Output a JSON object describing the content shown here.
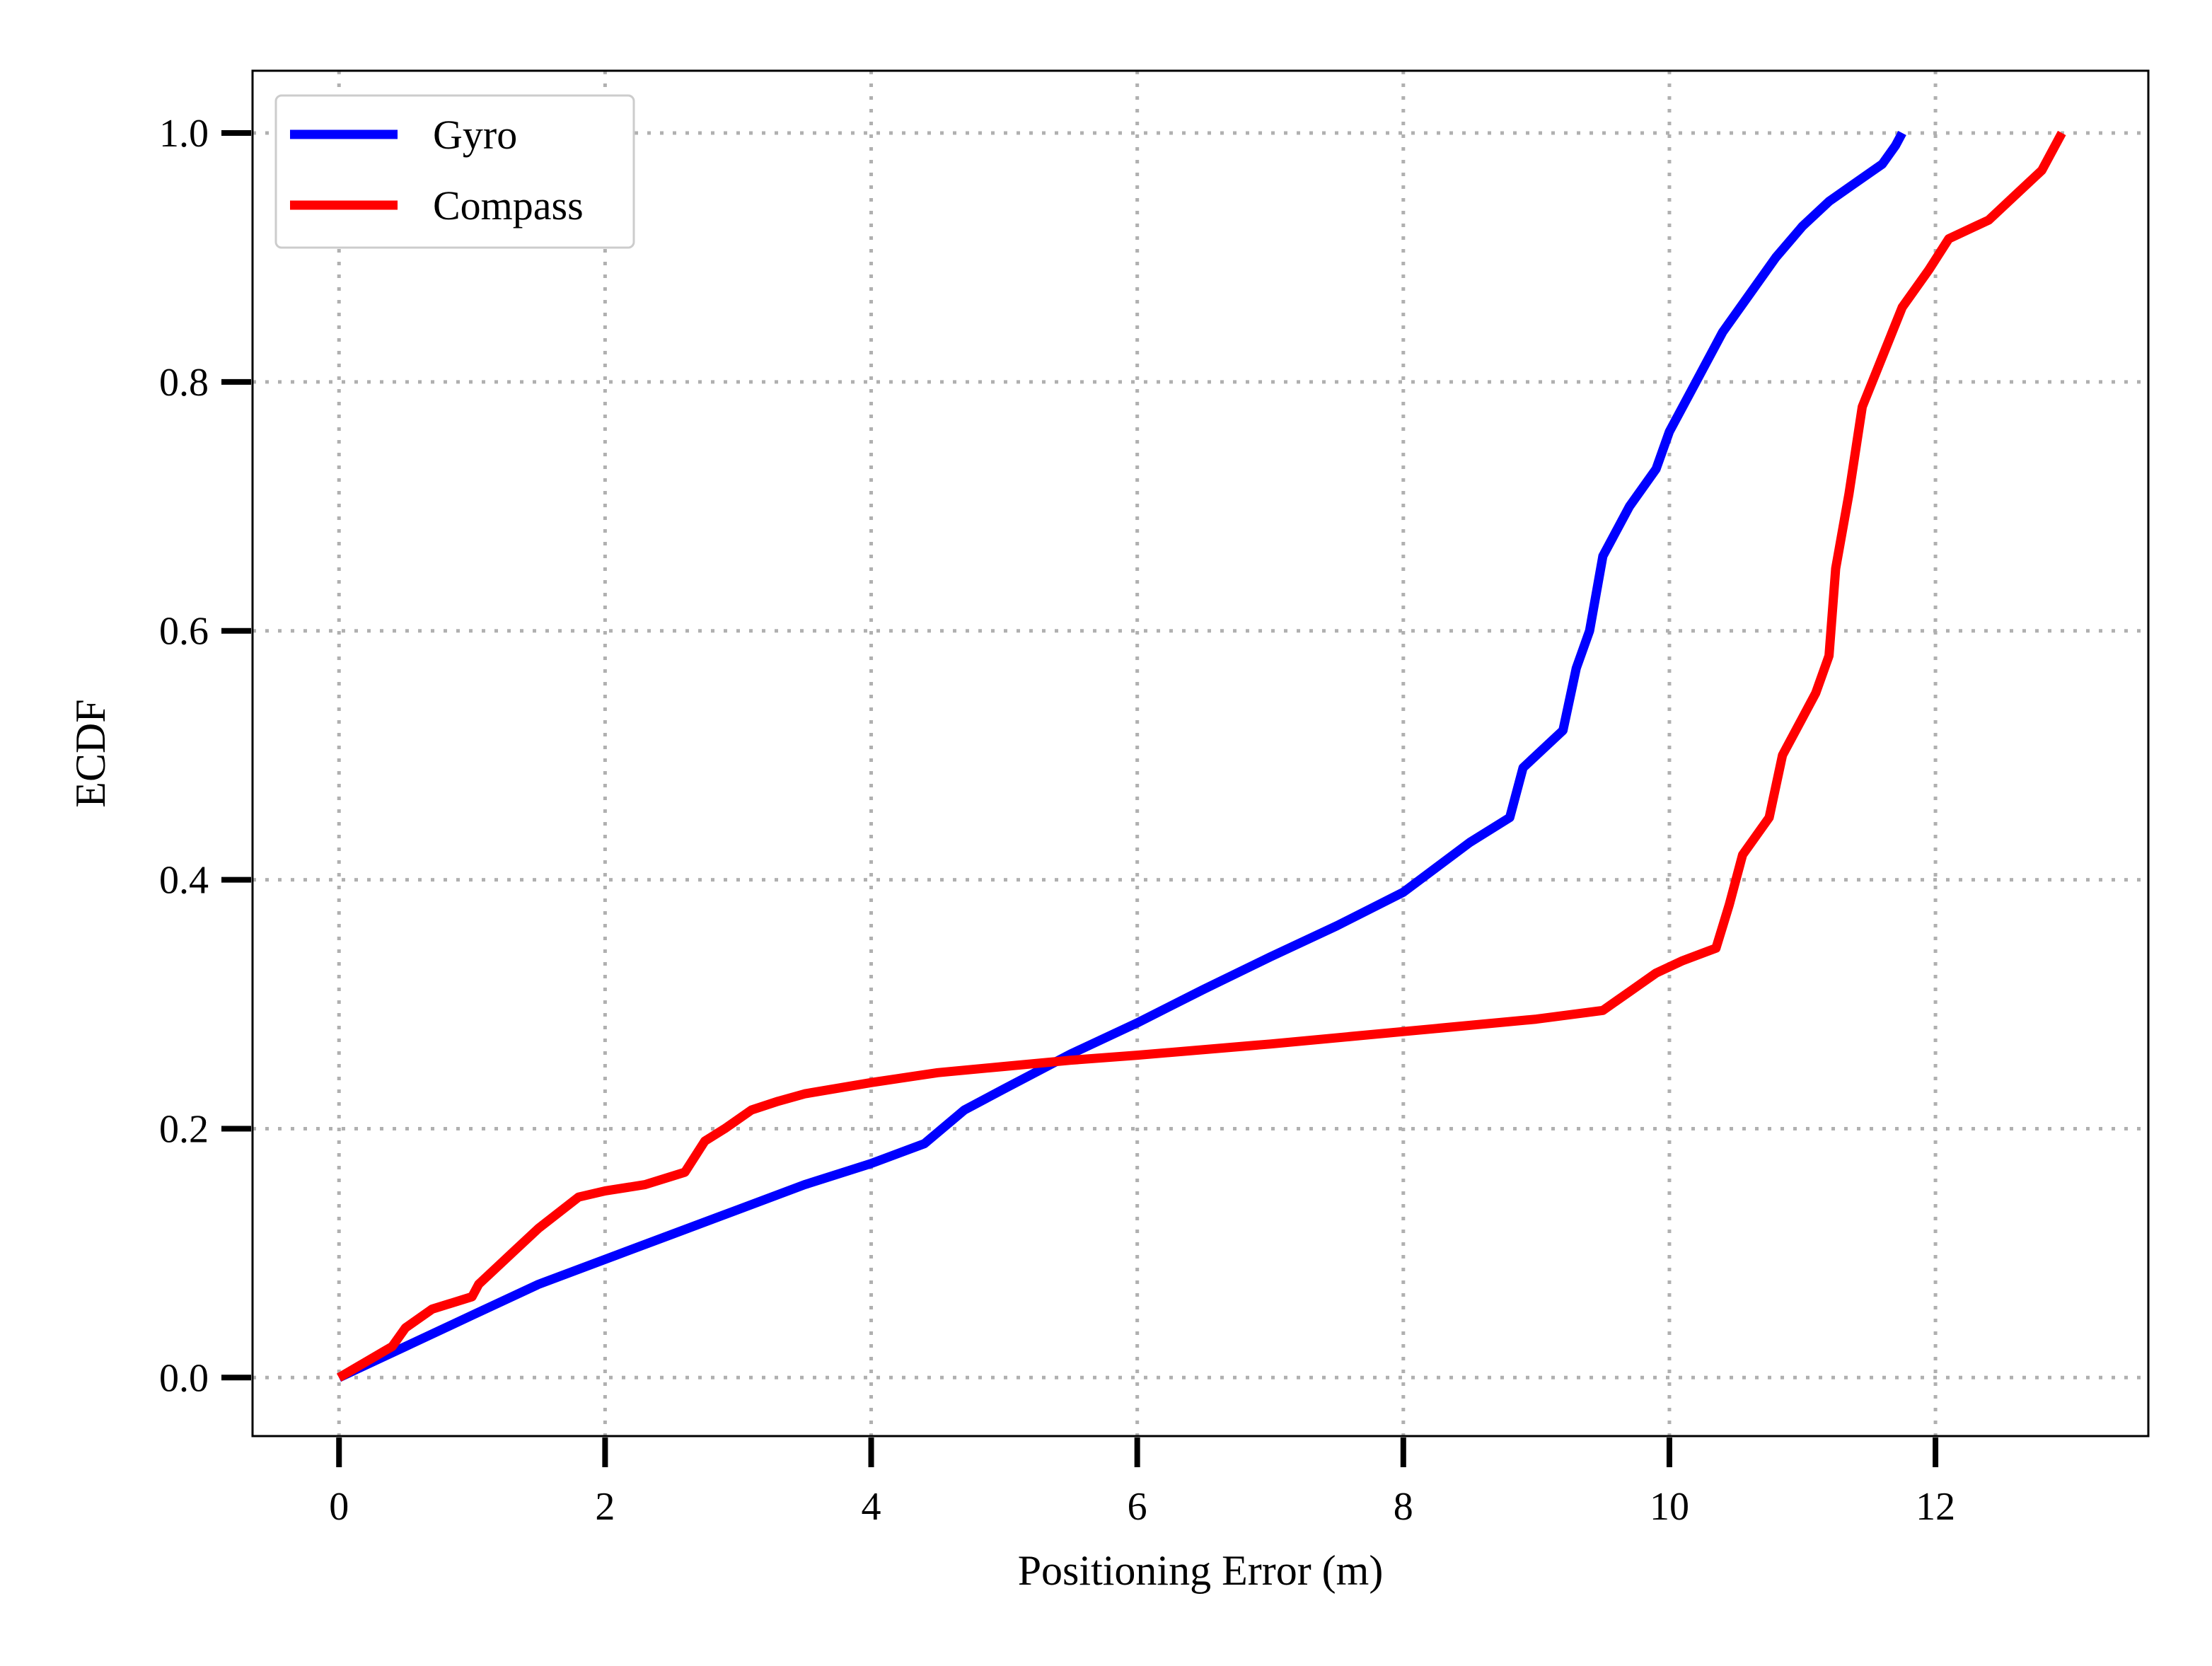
{
  "chart_data": {
    "type": "line",
    "xlabel": "Positioning Error (m)",
    "ylabel": "ECDF",
    "xlim": [
      -0.65,
      13.6
    ],
    "ylim": [
      -0.047,
      1.05
    ],
    "xticks": [
      0,
      2,
      4,
      6,
      8,
      10,
      12
    ],
    "xtick_labels": [
      "0",
      "2",
      "4",
      "6",
      "8",
      "10",
      "12"
    ],
    "yticks": [
      0.0,
      0.2,
      0.4,
      0.6,
      0.8,
      1.0
    ],
    "ytick_labels": [
      "0.0",
      "0.2",
      "0.4",
      "0.6",
      "0.8",
      "1.0"
    ],
    "grid": true,
    "legend_position": "top-left",
    "series": [
      {
        "name": "Gyro",
        "color": "#0000ff",
        "points": [
          [
            0.0,
            0.0
          ],
          [
            0.5,
            0.025
          ],
          [
            1.0,
            0.05
          ],
          [
            1.5,
            0.075
          ],
          [
            2.0,
            0.095
          ],
          [
            2.5,
            0.115
          ],
          [
            3.0,
            0.135
          ],
          [
            3.5,
            0.155
          ],
          [
            4.0,
            0.172
          ],
          [
            4.4,
            0.188
          ],
          [
            4.7,
            0.215
          ],
          [
            5.0,
            0.232
          ],
          [
            5.5,
            0.26
          ],
          [
            6.0,
            0.285
          ],
          [
            6.5,
            0.312
          ],
          [
            7.0,
            0.338
          ],
          [
            7.5,
            0.363
          ],
          [
            8.0,
            0.39
          ],
          [
            8.5,
            0.43
          ],
          [
            8.8,
            0.45
          ],
          [
            8.9,
            0.49
          ],
          [
            9.2,
            0.52
          ],
          [
            9.3,
            0.57
          ],
          [
            9.4,
            0.6
          ],
          [
            9.5,
            0.66
          ],
          [
            9.7,
            0.7
          ],
          [
            9.9,
            0.73
          ],
          [
            10.0,
            0.76
          ],
          [
            10.2,
            0.8
          ],
          [
            10.4,
            0.84
          ],
          [
            10.6,
            0.87
          ],
          [
            10.8,
            0.9
          ],
          [
            11.0,
            0.925
          ],
          [
            11.2,
            0.945
          ],
          [
            11.4,
            0.96
          ],
          [
            11.6,
            0.975
          ],
          [
            11.7,
            0.99
          ],
          [
            11.75,
            1.0
          ]
        ]
      },
      {
        "name": "Compass",
        "color": "#ff0000",
        "points": [
          [
            0.0,
            0.0
          ],
          [
            0.4,
            0.025
          ],
          [
            0.5,
            0.04
          ],
          [
            0.7,
            0.055
          ],
          [
            1.0,
            0.065
          ],
          [
            1.05,
            0.075
          ],
          [
            1.3,
            0.1
          ],
          [
            1.5,
            0.12
          ],
          [
            1.8,
            0.145
          ],
          [
            2.0,
            0.15
          ],
          [
            2.3,
            0.155
          ],
          [
            2.6,
            0.165
          ],
          [
            2.75,
            0.19
          ],
          [
            2.9,
            0.2
          ],
          [
            3.1,
            0.215
          ],
          [
            3.3,
            0.222
          ],
          [
            3.5,
            0.228
          ],
          [
            4.0,
            0.237
          ],
          [
            4.5,
            0.245
          ],
          [
            5.0,
            0.25
          ],
          [
            5.5,
            0.255
          ],
          [
            6.0,
            0.259
          ],
          [
            7.0,
            0.268
          ],
          [
            8.0,
            0.278
          ],
          [
            9.0,
            0.288
          ],
          [
            9.5,
            0.295
          ],
          [
            9.7,
            0.31
          ],
          [
            9.9,
            0.325
          ],
          [
            10.1,
            0.335
          ],
          [
            10.35,
            0.345
          ],
          [
            10.45,
            0.38
          ],
          [
            10.55,
            0.42
          ],
          [
            10.75,
            0.45
          ],
          [
            10.85,
            0.5
          ],
          [
            11.0,
            0.53
          ],
          [
            11.1,
            0.55
          ],
          [
            11.2,
            0.58
          ],
          [
            11.25,
            0.65
          ],
          [
            11.35,
            0.71
          ],
          [
            11.45,
            0.78
          ],
          [
            11.6,
            0.82
          ],
          [
            11.75,
            0.86
          ],
          [
            11.95,
            0.89
          ],
          [
            12.1,
            0.915
          ],
          [
            12.4,
            0.93
          ],
          [
            12.6,
            0.95
          ],
          [
            12.8,
            0.97
          ],
          [
            12.95,
            1.0
          ]
        ]
      }
    ]
  }
}
